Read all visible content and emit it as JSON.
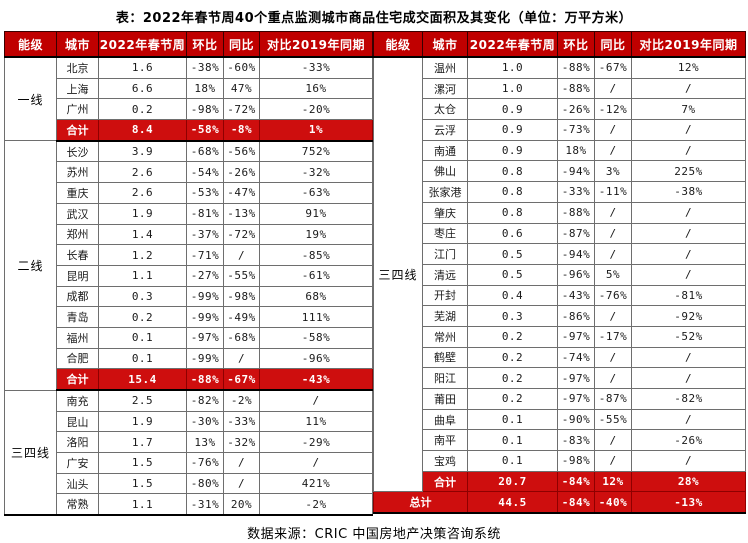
{
  "title": "表：2022年春节周40个重点监测城市商品住宅成交面积及其变化（单位：万平方米）",
  "source": "数据来源：CRIC 中国房地产决策咨询系统",
  "colors": {
    "header_red": "#C00000",
    "total_red": "#CE0E0E",
    "border_gray": "#6e6e6e",
    "thick_line": "#000000"
  },
  "columns": [
    "能级",
    "城市",
    "2022年春节周",
    "环比",
    "同比",
    "对比2019年同期"
  ],
  "left_table": {
    "sections": [
      {
        "tier": "一线",
        "rows": [
          [
            "北京",
            "1.6",
            "-38%",
            "-60%",
            "-33%"
          ],
          [
            "上海",
            "6.6",
            "18%",
            "47%",
            "16%"
          ],
          [
            "广州",
            "0.2",
            "-98%",
            "-72%",
            "-20%"
          ]
        ],
        "total": [
          "合计",
          "8.4",
          "-58%",
          "-8%",
          "1%"
        ]
      },
      {
        "tier": "二线",
        "rows": [
          [
            "长沙",
            "3.9",
            "-68%",
            "-56%",
            "752%"
          ],
          [
            "苏州",
            "2.6",
            "-54%",
            "-26%",
            "-32%"
          ],
          [
            "重庆",
            "2.6",
            "-53%",
            "-47%",
            "-63%"
          ],
          [
            "武汉",
            "1.9",
            "-81%",
            "-13%",
            "91%"
          ],
          [
            "郑州",
            "1.4",
            "-37%",
            "-72%",
            "19%"
          ],
          [
            "长春",
            "1.2",
            "-71%",
            "/",
            "-85%"
          ],
          [
            "昆明",
            "1.1",
            "-27%",
            "-55%",
            "-61%"
          ],
          [
            "成都",
            "0.3",
            "-99%",
            "-98%",
            "68%"
          ],
          [
            "青岛",
            "0.2",
            "-99%",
            "-49%",
            "111%"
          ],
          [
            "福州",
            "0.1",
            "-97%",
            "-68%",
            "-58%"
          ],
          [
            "合肥",
            "0.1",
            "-99%",
            "/",
            "-96%"
          ]
        ],
        "total": [
          "合计",
          "15.4",
          "-88%",
          "-67%",
          "-43%"
        ]
      },
      {
        "tier": "三四线",
        "rows": [
          [
            "南充",
            "2.5",
            "-82%",
            "-2%",
            "/"
          ],
          [
            "昆山",
            "1.9",
            "-30%",
            "-33%",
            "11%"
          ],
          [
            "洛阳",
            "1.7",
            "13%",
            "-32%",
            "-29%"
          ],
          [
            "广安",
            "1.5",
            "-76%",
            "/",
            "/"
          ],
          [
            "汕头",
            "1.5",
            "-80%",
            "/",
            "421%"
          ],
          [
            "常熟",
            "1.1",
            "-31%",
            "20%",
            "-2%"
          ]
        ],
        "total": null
      }
    ]
  },
  "right_table": {
    "sections": [
      {
        "tier": "三四线",
        "rows": [
          [
            "温州",
            "1.0",
            "-88%",
            "-67%",
            "12%"
          ],
          [
            "漯河",
            "1.0",
            "-88%",
            "/",
            "/"
          ],
          [
            "太仓",
            "0.9",
            "-26%",
            "-12%",
            "7%"
          ],
          [
            "云浮",
            "0.9",
            "-73%",
            "/",
            "/"
          ],
          [
            "南通",
            "0.9",
            "18%",
            "/",
            "/"
          ],
          [
            "佛山",
            "0.8",
            "-94%",
            "3%",
            "225%"
          ],
          [
            "张家港",
            "0.8",
            "-33%",
            "-11%",
            "-38%"
          ],
          [
            "肇庆",
            "0.8",
            "-88%",
            "/",
            "/"
          ],
          [
            "枣庄",
            "0.6",
            "-87%",
            "/",
            "/"
          ],
          [
            "江门",
            "0.5",
            "-94%",
            "/",
            "/"
          ],
          [
            "清远",
            "0.5",
            "-96%",
            "5%",
            "/"
          ],
          [
            "开封",
            "0.4",
            "-43%",
            "-76%",
            "-81%"
          ],
          [
            "芜湖",
            "0.3",
            "-86%",
            "/",
            "-92%"
          ],
          [
            "常州",
            "0.2",
            "-97%",
            "-17%",
            "-52%"
          ],
          [
            "鹤壁",
            "0.2",
            "-74%",
            "/",
            "/"
          ],
          [
            "阳江",
            "0.2",
            "-97%",
            "/",
            "/"
          ],
          [
            "莆田",
            "0.2",
            "-97%",
            "-87%",
            "-82%"
          ],
          [
            "曲阜",
            "0.1",
            "-90%",
            "-55%",
            "/"
          ],
          [
            "南平",
            "0.1",
            "-83%",
            "/",
            "-26%"
          ],
          [
            "宝鸡",
            "0.1",
            "-98%",
            "/",
            "/"
          ]
        ],
        "total": [
          "合计",
          "20.7",
          "-84%",
          "12%",
          "28%"
        ]
      }
    ],
    "grand_total": [
      "总计",
      "44.5",
      "-84%",
      "-40%",
      "-13%"
    ]
  }
}
